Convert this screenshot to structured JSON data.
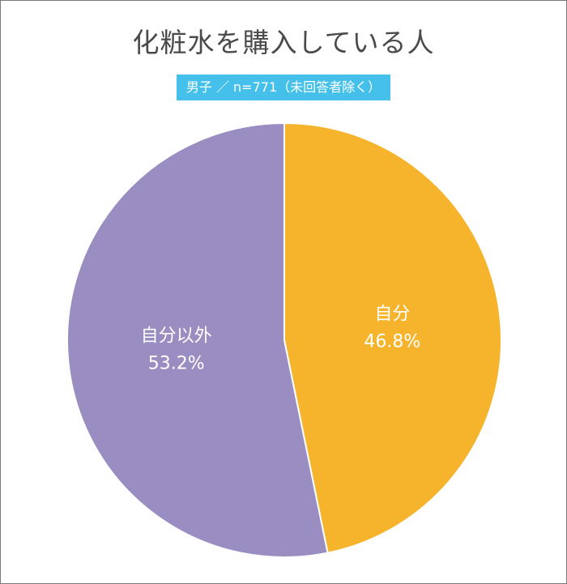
{
  "title": "化粧水を購入している人",
  "subtitle": "男子 ／ n=771（未回答者除く）",
  "colors": {
    "self": "#f6b42c",
    "other": "#9a8dc2",
    "subtitle_bg": "#45c0ea",
    "slice_border": "#ffffff"
  },
  "chart_data": {
    "type": "pie",
    "title": "化粧水を購入している人",
    "subtitle": "男子 ／ n=771（未回答者除く）",
    "slices": [
      {
        "label": "自分",
        "value": 46.8,
        "value_label": "46.8%",
        "color": "#f6b42c"
      },
      {
        "label": "自分以外",
        "value": 53.2,
        "value_label": "53.2%",
        "color": "#9a8dc2"
      }
    ],
    "start_angle_deg": 0,
    "direction": "clockwise",
    "legend": "none"
  }
}
